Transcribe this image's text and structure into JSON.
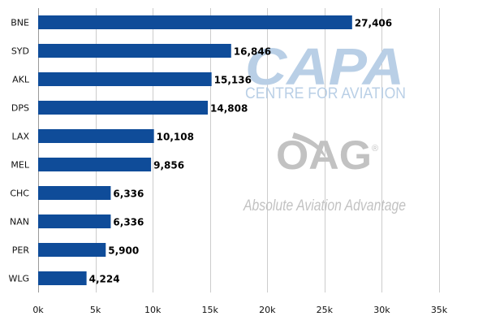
{
  "chart_data": {
    "type": "bar",
    "orientation": "horizontal",
    "title": "",
    "xlabel": "",
    "ylabel": "",
    "categories": [
      "BNE",
      "SYD",
      "AKL",
      "DPS",
      "LAX",
      "MEL",
      "CHC",
      "NAN",
      "PER",
      "WLG"
    ],
    "values": [
      27406,
      16846,
      15136,
      14808,
      10108,
      9856,
      6336,
      6336,
      5900,
      4224
    ],
    "value_labels": [
      "27,406",
      "16,846",
      "15,136",
      "14,808",
      "10,108",
      "9,856",
      "6,336",
      "6,336",
      "5,900",
      "4,224"
    ],
    "xlim": [
      0,
      35000
    ],
    "x_ticks": [
      0,
      5000,
      10000,
      15000,
      20000,
      25000,
      30000,
      35000
    ],
    "x_tick_labels": [
      "0k",
      "5k",
      "10k",
      "15k",
      "20k",
      "25k",
      "30k",
      "35k"
    ],
    "grid": "vertical",
    "legend": "none",
    "bar_color": "#0f4c99",
    "grid_color": "#cccccc"
  },
  "watermarks": {
    "capa": {
      "title": "CAPA",
      "subtitle": "CENTRE FOR AVIATION",
      "color": "#b9cfe6"
    },
    "oag": {
      "title": "OAG",
      "registered_mark": "®",
      "subtitle": "Absolute Aviation Advantage",
      "color": "#c2c2c2"
    }
  }
}
